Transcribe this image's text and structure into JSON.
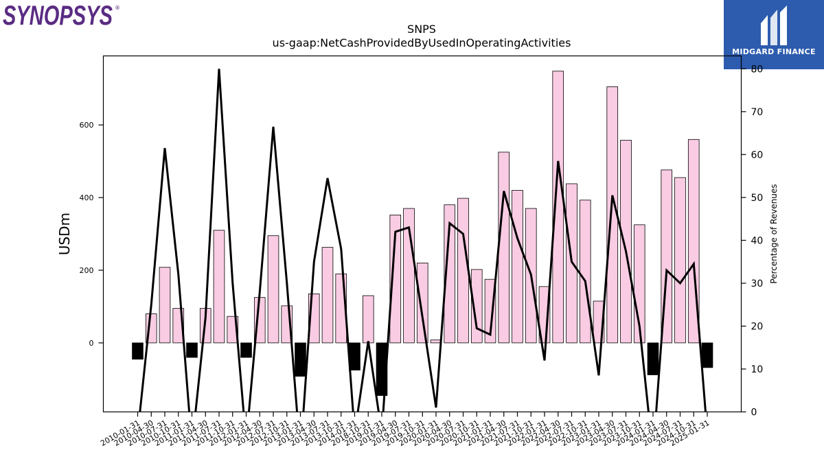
{
  "brand": {
    "company_logo_text": "SYNOPSYS",
    "badge_text": "MIDGARD FINANCE"
  },
  "colors": {
    "positive_bar": "#f9cce3",
    "negative_bar": "#000000",
    "line": "#000000",
    "badge_bg": "#2d5cae",
    "logo": "#5a2c83"
  },
  "chart_data": {
    "type": "bar",
    "title": "SNPS",
    "subtitle": "us-gaap:NetCashProvidedByUsedInOperatingActivities",
    "ylabel": "USDm",
    "y2label": "Percentage of Revenues",
    "ylim": [
      -190,
      790
    ],
    "y2lim": [
      0,
      83
    ],
    "yticks": [
      0,
      200,
      400,
      600
    ],
    "y2ticks": [
      0,
      10,
      20,
      30,
      40,
      50,
      60,
      70,
      80
    ],
    "grid": false,
    "categories": [
      "2010-01-31",
      "2010-04-30",
      "2010-07-31",
      "2010-10-31",
      "2011-01-31",
      "2011-04-30",
      "2011-07-31",
      "2011-10-31",
      "2012-01-31",
      "2012-04-30",
      "2012-07-31",
      "2012-10-31",
      "2013-01-31",
      "2013-04-30",
      "2013-07-31",
      "2013-10-31",
      "2014-01-31",
      "2018-10-31",
      "2019-01-31",
      "2019-04-30",
      "2019-07-31",
      "2019-10-31",
      "2020-01-31",
      "2020-04-30",
      "2020-07-31",
      "2020-10-31",
      "2021-01-31",
      "2021-04-30",
      "2021-07-31",
      "2021-10-31",
      "2022-01-31",
      "2022-04-30",
      "2022-07-31",
      "2022-10-31",
      "2023-01-31",
      "2023-04-30",
      "2023-07-31",
      "2023-10-31",
      "2024-01-31",
      "2024-04-30",
      "2024-07-31",
      "2024-10-31",
      "2025-01-31"
    ],
    "series": [
      {
        "kind": "bar",
        "values": [
          -45,
          80,
          208,
          95,
          -40,
          95,
          310,
          73,
          -40,
          125,
          295,
          102,
          -92,
          135,
          263,
          190,
          -75,
          130,
          -145,
          352,
          370,
          220,
          8,
          380,
          398,
          202,
          175,
          525,
          420,
          370,
          155,
          748,
          438,
          393,
          115,
          705,
          558,
          325,
          -88,
          476,
          455,
          560,
          -68
        ]
      },
      {
        "kind": "line",
        "axis": "right",
        "values": [
          -5,
          25,
          61.5,
          32,
          -8,
          22,
          80,
          30,
          -7,
          28,
          66.5,
          30,
          -10,
          35,
          54.5,
          38,
          -5,
          16.5,
          -5,
          42,
          43,
          22,
          1,
          44,
          41.5,
          19.5,
          18,
          51.5,
          40.5,
          32,
          12,
          58.5,
          35,
          30.5,
          8.5,
          50.5,
          37.5,
          20,
          -10,
          33,
          30,
          34.5,
          -5
        ]
      }
    ]
  }
}
